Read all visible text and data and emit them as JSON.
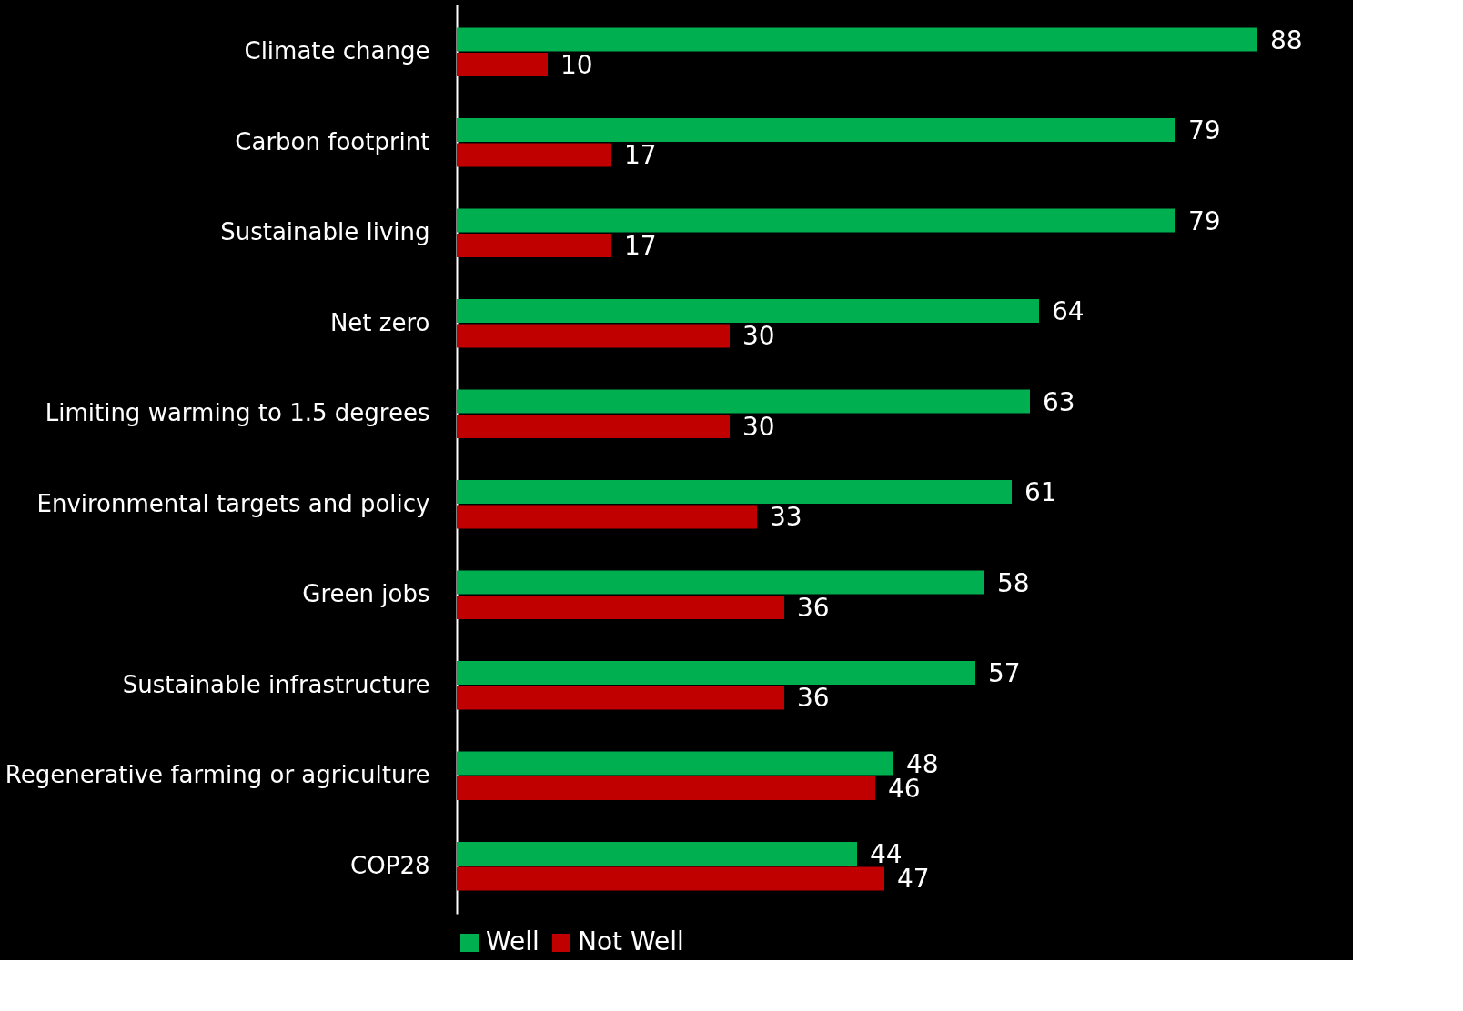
{
  "chart_data": {
    "type": "bar",
    "orientation": "horizontal",
    "categories": [
      "Climate change",
      "Carbon footprint",
      "Sustainable living",
      "Net zero",
      "Limiting warming to 1.5 degrees",
      "Environmental targets and policy",
      "Green jobs",
      "Sustainable infrastructure",
      "Regenerative farming or agriculture",
      "COP28"
    ],
    "series": [
      {
        "name": "Well",
        "color": "#00b050",
        "values": [
          88,
          79,
          79,
          64,
          63,
          61,
          58,
          57,
          48,
          44
        ]
      },
      {
        "name": "Not Well",
        "color": "#c00000",
        "values": [
          10,
          17,
          17,
          30,
          30,
          33,
          36,
          36,
          46,
          47
        ]
      }
    ],
    "xlim": [
      0,
      98
    ],
    "data_labels": true,
    "legend": "bottom",
    "grid": false,
    "tick_labels": "y"
  }
}
